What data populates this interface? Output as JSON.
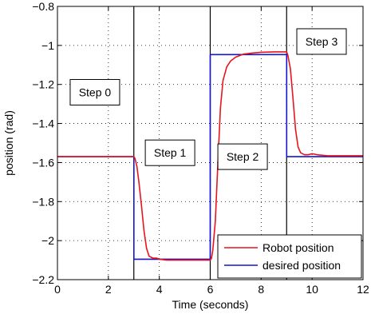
{
  "chart_data": {
    "type": "line",
    "xlabel": "Time (seconds)",
    "ylabel": "position (rad)",
    "xlim": [
      0,
      12
    ],
    "ylim": [
      -2.2,
      -0.8
    ],
    "xticks": [
      {
        "v": 0,
        "label": "0"
      },
      {
        "v": 2,
        "label": "2"
      },
      {
        "v": 4,
        "label": "4"
      },
      {
        "v": 6,
        "label": "6"
      },
      {
        "v": 8,
        "label": "8"
      },
      {
        "v": 10,
        "label": "10"
      },
      {
        "v": 12,
        "label": "12"
      }
    ],
    "yticks": [
      {
        "v": -0.8,
        "label": "−0.8"
      },
      {
        "v": -1.0,
        "label": "−1"
      },
      {
        "v": -1.2,
        "label": "−1.2"
      },
      {
        "v": -1.4,
        "label": "−1.4"
      },
      {
        "v": -1.6,
        "label": "−1.6"
      },
      {
        "v": -1.8,
        "label": "−1.8"
      },
      {
        "v": -2.0,
        "label": "−2"
      },
      {
        "v": -2.2,
        "label": "−2.2"
      }
    ],
    "grid": true,
    "legend_position": "bottom-right",
    "series": [
      {
        "name": "Robot position",
        "color": "#e8141c",
        "points": [
          [
            0,
            -1.57
          ],
          [
            3.0,
            -1.57
          ],
          [
            3.05,
            -1.58
          ],
          [
            3.12,
            -1.62
          ],
          [
            3.2,
            -1.7
          ],
          [
            3.3,
            -1.82
          ],
          [
            3.4,
            -1.95
          ],
          [
            3.5,
            -2.04
          ],
          [
            3.6,
            -2.08
          ],
          [
            3.75,
            -2.09
          ],
          [
            3.9,
            -2.09
          ],
          [
            4.0,
            -2.095
          ],
          [
            4.3,
            -2.1
          ],
          [
            5.0,
            -2.1
          ],
          [
            5.6,
            -2.1
          ],
          [
            6.0,
            -2.1
          ],
          [
            6.05,
            -2.09
          ],
          [
            6.1,
            -2.05
          ],
          [
            6.2,
            -1.9
          ],
          [
            6.3,
            -1.6
          ],
          [
            6.4,
            -1.32
          ],
          [
            6.5,
            -1.18
          ],
          [
            6.65,
            -1.11
          ],
          [
            6.8,
            -1.08
          ],
          [
            7.0,
            -1.06
          ],
          [
            7.3,
            -1.045
          ],
          [
            7.6,
            -1.04
          ],
          [
            8.0,
            -1.035
          ],
          [
            8.5,
            -1.033
          ],
          [
            9.0,
            -1.033
          ],
          [
            9.05,
            -1.05
          ],
          [
            9.15,
            -1.12
          ],
          [
            9.25,
            -1.27
          ],
          [
            9.35,
            -1.43
          ],
          [
            9.45,
            -1.52
          ],
          [
            9.55,
            -1.55
          ],
          [
            9.7,
            -1.56
          ],
          [
            9.85,
            -1.56
          ],
          [
            10.0,
            -1.555
          ],
          [
            10.2,
            -1.56
          ],
          [
            10.6,
            -1.565
          ],
          [
            11.0,
            -1.565
          ],
          [
            12.0,
            -1.565
          ]
        ]
      },
      {
        "name": "desired position",
        "color": "#1414d4",
        "points": [
          [
            0,
            -1.57
          ],
          [
            3.0,
            -1.57
          ],
          [
            3.0,
            -2.095
          ],
          [
            6.0,
            -2.095
          ],
          [
            6.0,
            -1.047
          ],
          [
            9.0,
            -1.047
          ],
          [
            9.0,
            -1.57
          ],
          [
            12.0,
            -1.57
          ]
        ]
      }
    ],
    "step_lines": [
      3,
      6,
      9
    ],
    "annotations": [
      {
        "text": "Step 0",
        "x": 0.5,
        "y": -1.24
      },
      {
        "text": "Step 1",
        "x": 3.45,
        "y": -1.55
      },
      {
        "text": "Step 2",
        "x": 6.3,
        "y": -1.57
      },
      {
        "text": "Step 3",
        "x": 9.4,
        "y": -0.98
      }
    ]
  }
}
